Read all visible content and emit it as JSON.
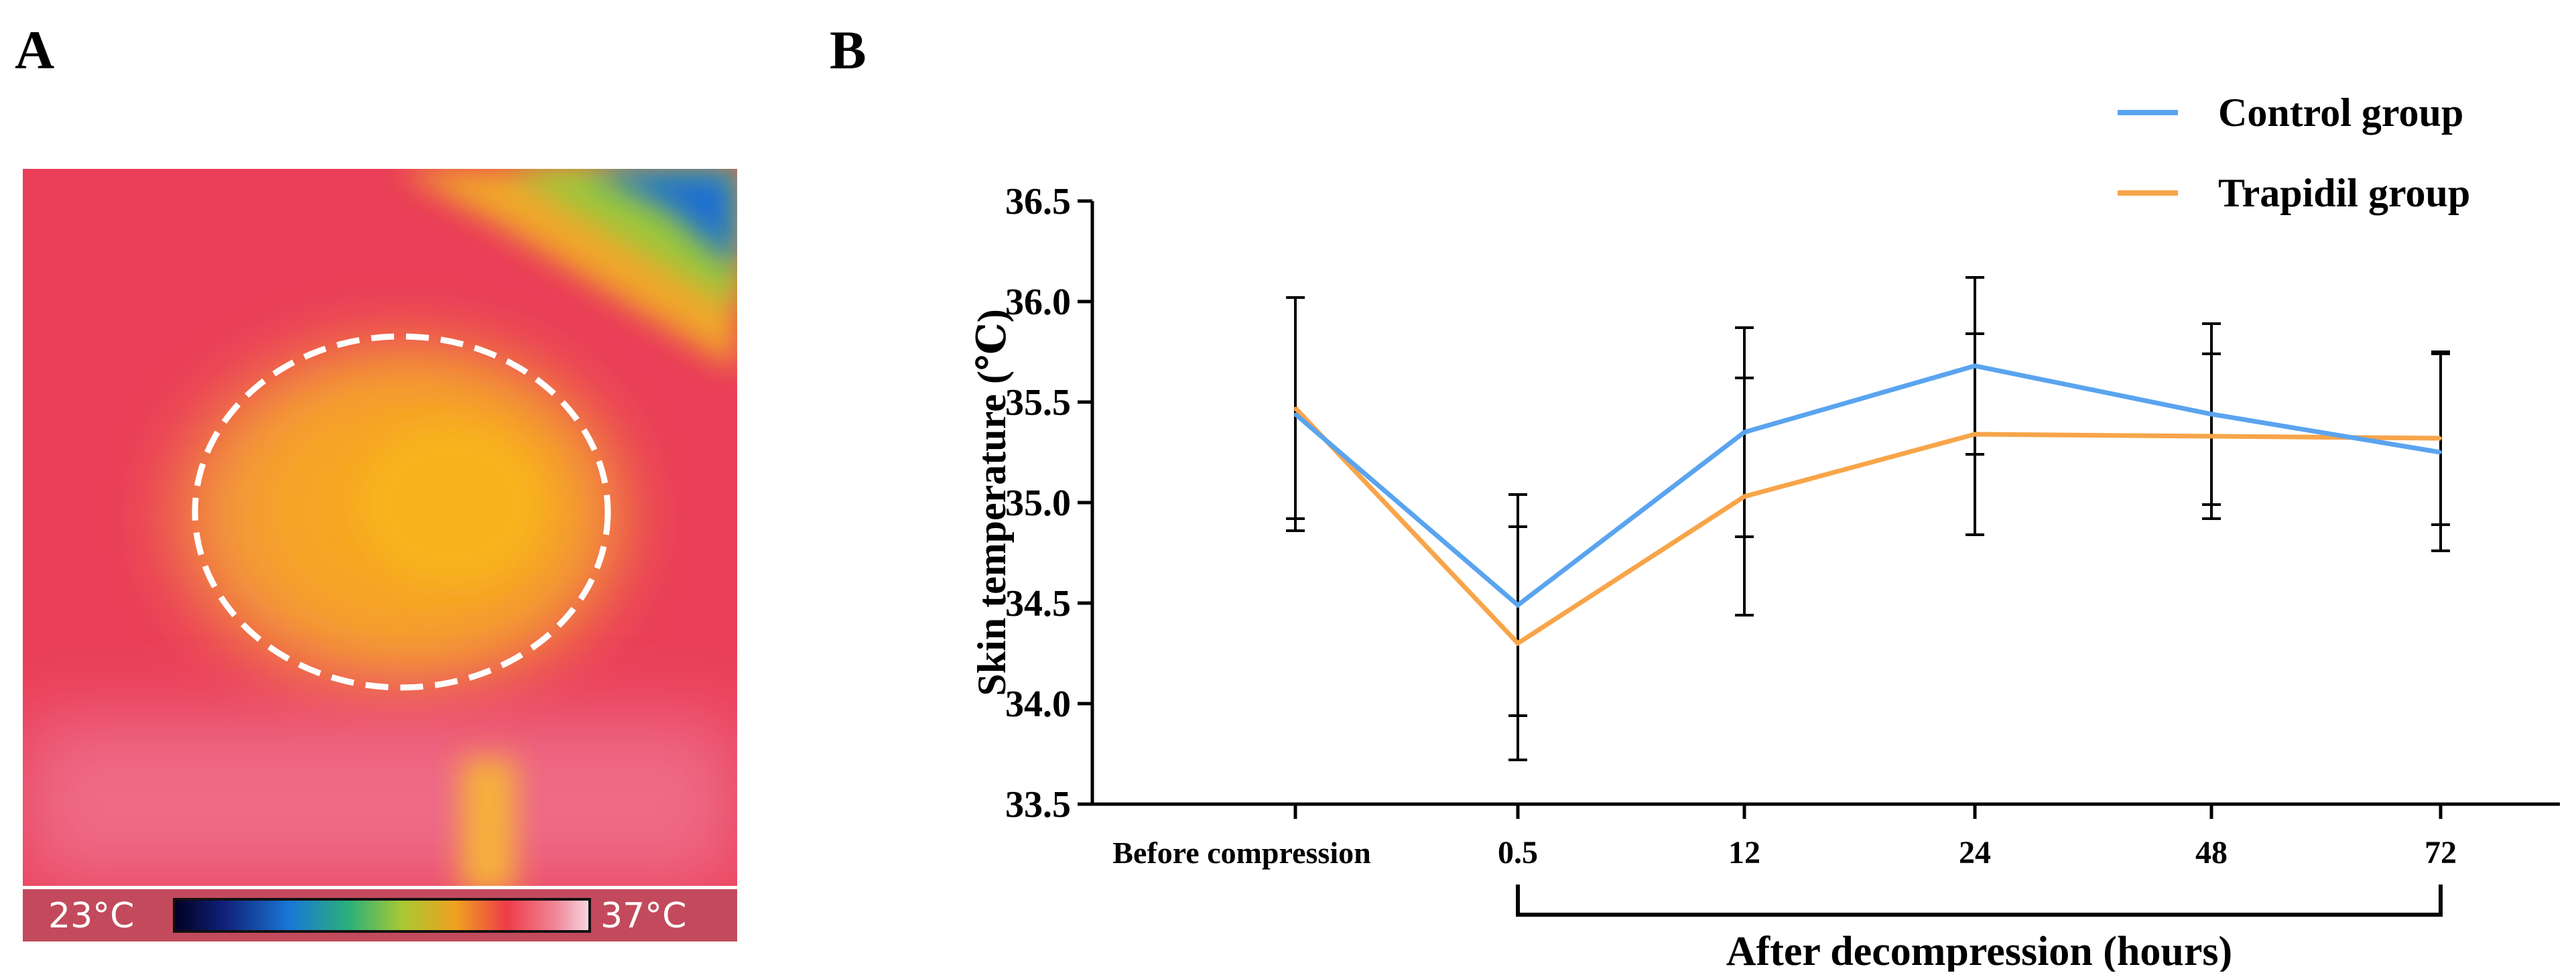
{
  "figure": {
    "panel_a_letter": "A",
    "panel_b_letter": "B"
  },
  "thermal_image": {
    "scale_min_label": "23°C",
    "scale_max_label": "37°C",
    "scale_min_value": 23,
    "scale_max_value": 37,
    "roi_outline": "dashed-ellipse",
    "colors": {
      "hot_core": "#f7a519",
      "warm": "#ee3c55",
      "cool_corner": "#1f70d0",
      "roi_outline": "#ffffff"
    }
  },
  "chart_data": {
    "type": "line",
    "categories": [
      "Before compression",
      "0.5",
      "12",
      "24",
      "48",
      "72"
    ],
    "series": [
      {
        "name": "Control group",
        "color": "#5aa4ef",
        "values": [
          35.44,
          34.49,
          35.35,
          35.68,
          35.44,
          35.25
        ],
        "errors": [
          0.58,
          0.55,
          0.52,
          0.44,
          0.45,
          0.49
        ]
      },
      {
        "name": "Trapidil group",
        "color": "#f7a54a",
        "values": [
          35.47,
          34.3,
          35.03,
          35.34,
          35.33,
          35.32
        ],
        "errors": [
          0.55,
          0.58,
          0.59,
          0.5,
          0.41,
          0.43
        ]
      }
    ],
    "ylabel": "Skin temperature (℃)",
    "ylim": [
      33.5,
      36.5
    ],
    "yticks": [
      "33.5",
      "34.0",
      "34.5",
      "35.0",
      "35.5",
      "36.0",
      "36.5"
    ],
    "bracket_label": "After decompression (hours)",
    "legend_position": "top-right",
    "grid": false
  }
}
